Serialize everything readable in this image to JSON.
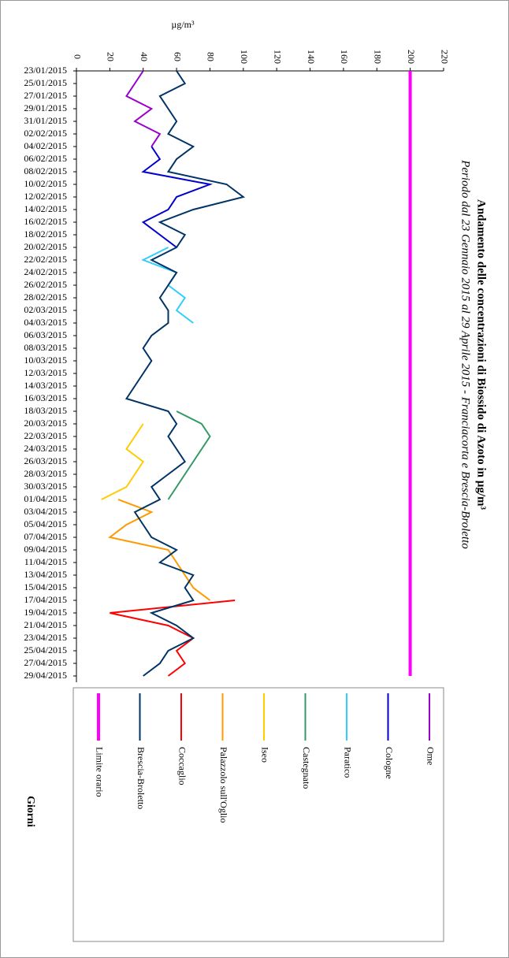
{
  "chart_data": {
    "type": "line",
    "title": "Andamento delle concentrazioni di Biossido di Azoto in µg/m³",
    "subtitle": "Periodo dal 23 Gennaio 2015 al 29 Aprile 2015 - Franciacorta e Brescia-Broletto",
    "xlabel": "Giorni",
    "ylabel": "µg/m³",
    "x": [
      "23/01/2015",
      "25/01/2015",
      "27/01/2015",
      "29/01/2015",
      "31/01/2015",
      "02/02/2015",
      "04/02/2015",
      "06/02/2015",
      "08/02/2015",
      "10/02/2015",
      "12/02/2015",
      "14/02/2015",
      "16/02/2015",
      "18/02/2015",
      "20/02/2015",
      "22/02/2015",
      "24/02/2015",
      "26/02/2015",
      "28/02/2015",
      "02/03/2015",
      "04/03/2015",
      "06/03/2015",
      "08/03/2015",
      "10/03/2015",
      "12/03/2015",
      "14/03/2015",
      "16/03/2015",
      "18/03/2015",
      "20/03/2015",
      "22/03/2015",
      "24/03/2015",
      "26/03/2015",
      "28/03/2015",
      "30/03/2015",
      "01/04/2015",
      "03/04/2015",
      "05/04/2015",
      "07/04/2015",
      "09/04/2015",
      "11/04/2015",
      "13/04/2015",
      "15/04/2015",
      "17/04/2015",
      "19/04/2015",
      "21/04/2015",
      "23/04/2015",
      "25/04/2015",
      "27/04/2015",
      "29/04/2015"
    ],
    "ylim": [
      0,
      220
    ],
    "yticks": [
      0,
      20,
      40,
      60,
      80,
      100,
      120,
      140,
      160,
      180,
      200,
      220
    ],
    "series": [
      {
        "name": "Ome",
        "color": "#9900cc",
        "values": [
          40,
          35,
          30,
          45,
          35,
          50,
          45,
          null,
          null,
          null,
          null,
          null,
          null,
          null,
          null,
          null,
          null,
          null,
          null,
          null,
          null,
          null,
          null,
          null,
          null,
          null,
          null,
          null,
          null,
          null,
          null,
          null,
          null,
          null,
          null,
          null,
          null,
          null,
          null,
          null,
          null,
          null,
          null,
          null,
          null,
          null,
          null,
          null,
          null
        ]
      },
      {
        "name": "Cologne",
        "color": "#0000cc",
        "values": [
          null,
          null,
          null,
          null,
          null,
          null,
          45,
          50,
          40,
          80,
          60,
          55,
          40,
          50,
          60,
          null,
          null,
          null,
          null,
          null,
          null,
          null,
          null,
          null,
          null,
          null,
          null,
          null,
          null,
          null,
          null,
          null,
          null,
          null,
          null,
          null,
          null,
          null,
          null,
          null,
          null,
          null,
          null,
          null,
          null,
          null,
          null,
          null,
          null
        ]
      },
      {
        "name": "Paratico",
        "color": "#33ccff",
        "values": [
          null,
          null,
          null,
          null,
          null,
          null,
          null,
          null,
          null,
          null,
          null,
          null,
          null,
          null,
          55,
          40,
          60,
          55,
          65,
          60,
          70,
          null,
          null,
          null,
          null,
          null,
          null,
          null,
          null,
          null,
          null,
          null,
          null,
          null,
          null,
          null,
          null,
          null,
          null,
          null,
          null,
          null,
          null,
          null,
          null,
          null,
          null,
          null,
          null
        ]
      },
      {
        "name": "Castegnato",
        "color": "#339966",
        "values": [
          null,
          null,
          null,
          null,
          null,
          null,
          null,
          null,
          null,
          null,
          null,
          null,
          null,
          null,
          null,
          null,
          null,
          null,
          null,
          null,
          null,
          null,
          null,
          null,
          null,
          null,
          null,
          60,
          75,
          80,
          75,
          70,
          65,
          60,
          55,
          null,
          null,
          null,
          null,
          null,
          null,
          null,
          null,
          null,
          null,
          null,
          null,
          null,
          null
        ]
      },
      {
        "name": "Iseo",
        "color": "#ffcc00",
        "values": [
          null,
          null,
          null,
          null,
          null,
          null,
          null,
          null,
          null,
          null,
          null,
          null,
          null,
          null,
          null,
          null,
          null,
          null,
          null,
          null,
          null,
          null,
          null,
          null,
          null,
          null,
          null,
          null,
          40,
          35,
          30,
          40,
          35,
          30,
          15,
          null,
          null,
          null,
          null,
          null,
          null,
          null,
          null,
          null,
          null,
          null,
          null,
          null,
          null
        ]
      },
      {
        "name": "Palazzolo sull'Oglio",
        "color": "#ff9900",
        "values": [
          null,
          null,
          null,
          null,
          null,
          null,
          null,
          null,
          null,
          null,
          null,
          null,
          null,
          null,
          null,
          null,
          null,
          null,
          null,
          null,
          null,
          null,
          null,
          null,
          null,
          null,
          null,
          null,
          null,
          null,
          null,
          null,
          null,
          null,
          25,
          45,
          30,
          20,
          55,
          60,
          65,
          70,
          80,
          null,
          null,
          null,
          null,
          null,
          null
        ]
      },
      {
        "name": "Coccaglio",
        "color": "#ff0000",
        "values": [
          null,
          null,
          null,
          null,
          null,
          null,
          null,
          null,
          null,
          null,
          null,
          null,
          null,
          null,
          null,
          null,
          null,
          null,
          null,
          null,
          null,
          null,
          null,
          null,
          null,
          null,
          null,
          null,
          null,
          null,
          null,
          null,
          null,
          null,
          null,
          null,
          null,
          null,
          null,
          null,
          null,
          null,
          95,
          20,
          55,
          70,
          60,
          65,
          55
        ]
      },
      {
        "name": "Brescia-Broletto",
        "color": "#003366",
        "values": [
          60,
          65,
          50,
          55,
          60,
          55,
          70,
          60,
          55,
          90,
          100,
          70,
          50,
          65,
          60,
          45,
          60,
          55,
          50,
          55,
          55,
          45,
          40,
          45,
          40,
          35,
          30,
          55,
          60,
          55,
          60,
          65,
          55,
          45,
          50,
          35,
          40,
          45,
          60,
          50,
          70,
          65,
          70,
          45,
          60,
          70,
          55,
          50,
          40
        ]
      },
      {
        "name": "Limite orario",
        "color": "#ff00ff",
        "values": [
          200,
          200,
          200,
          200,
          200,
          200,
          200,
          200,
          200,
          200,
          200,
          200,
          200,
          200,
          200,
          200,
          200,
          200,
          200,
          200,
          200,
          200,
          200,
          200,
          200,
          200,
          200,
          200,
          200,
          200,
          200,
          200,
          200,
          200,
          200,
          200,
          200,
          200,
          200,
          200,
          200,
          200,
          200,
          200,
          200,
          200,
          200,
          200,
          200
        ]
      }
    ]
  }
}
